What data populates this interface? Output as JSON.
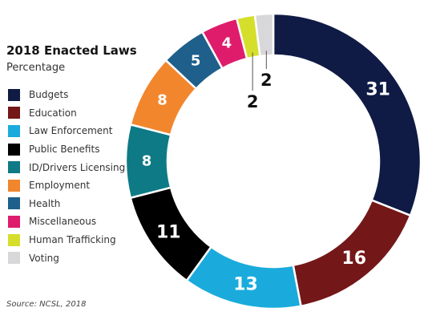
{
  "chart_data": {
    "type": "pie",
    "title": "2018 Enacted Laws",
    "subtitle": "Percentage",
    "source": "Source: NCSL, 2018",
    "slices": [
      {
        "label": "Budgets",
        "value": 31,
        "color": "#0f1b45",
        "value_text": "31"
      },
      {
        "label": "Education",
        "value": 16,
        "color": "#741718",
        "value_text": "16"
      },
      {
        "label": "Law Enforcement",
        "value": 13,
        "color": "#1aabdc",
        "value_text": "13"
      },
      {
        "label": "Public Benefits",
        "value": 11,
        "color": "#000000",
        "value_text": "11"
      },
      {
        "label": "ID/Drivers Licensing",
        "value": 8,
        "color": "#0e7a86",
        "value_text": "8"
      },
      {
        "label": "Employment",
        "value": 8,
        "color": "#f2862d",
        "value_text": "8"
      },
      {
        "label": "Health",
        "value": 5,
        "color": "#1f5f8b",
        "value_text": "5"
      },
      {
        "label": "Miscellaneous",
        "value": 4,
        "color": "#df1c6c",
        "value_text": "4"
      },
      {
        "label": "Human Trafficking",
        "value": 2,
        "color": "#d5df2b",
        "value_text": "2"
      },
      {
        "label": "Voting",
        "value": 2,
        "color": "#d8d8da",
        "value_text": "2"
      }
    ]
  }
}
